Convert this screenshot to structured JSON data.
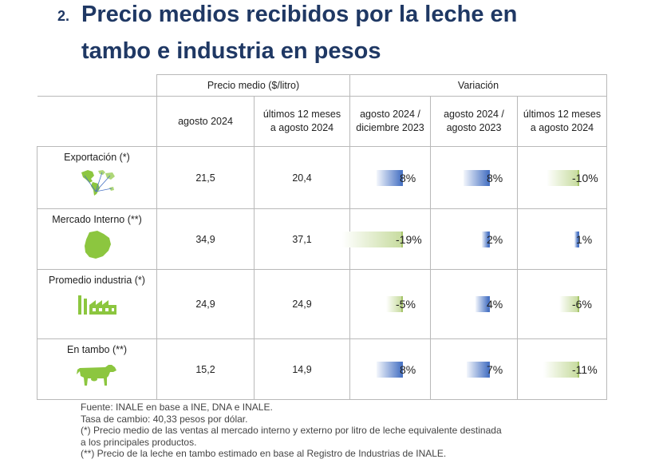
{
  "title": {
    "number": "2.",
    "line1": "Precio medios recibidos por la leche en",
    "line2": "tambo e industria en pesos"
  },
  "header": {
    "group1": "Precio medio ($/litro)",
    "group2": "Variación",
    "col1": "agosto 2024",
    "col2_l1": "últimos 12 meses",
    "col2_l2": "a agosto 2024",
    "col3_l1": "agosto 2024 /",
    "col3_l2": "diciembre 2023",
    "col4_l1": "agosto 2024 /",
    "col4_l2": "agosto 2023",
    "col5_l1": "últimos 12 meses",
    "col5_l2": "a agosto 2024"
  },
  "rows": [
    {
      "label": "Exportación (*)",
      "icon": "world-map-icon",
      "price_aug": "21,5",
      "price_12m": "20,4",
      "var": [
        {
          "text": "8%",
          "value": 8
        },
        {
          "text": "8%",
          "value": 8
        },
        {
          "text": "-10%",
          "value": -10
        }
      ]
    },
    {
      "label": "Mercado Interno (**)",
      "icon": "uruguay-map-icon",
      "price_aug": "34,9",
      "price_12m": "37,1",
      "var": [
        {
          "text": "-19%",
          "value": -19
        },
        {
          "text": "2%",
          "value": 2
        },
        {
          "text": "1%",
          "value": 1
        }
      ]
    },
    {
      "label": "Promedio industria (*)",
      "icon": "factory-icon",
      "price_aug": "24,9",
      "price_12m": "24,9",
      "var": [
        {
          "text": "-5%",
          "value": -5
        },
        {
          "text": "4%",
          "value": 4
        },
        {
          "text": "-6%",
          "value": -6
        }
      ]
    },
    {
      "label": "En tambo (**)",
      "icon": "cow-icon",
      "price_aug": "15,2",
      "price_12m": "14,9",
      "var": [
        {
          "text": "8%",
          "value": 8
        },
        {
          "text": "7%",
          "value": 7
        },
        {
          "text": "-11%",
          "value": -11
        }
      ]
    }
  ],
  "colors": {
    "title": "#1f3864",
    "value": "#1f5fa6",
    "positive_bar": "#4a74c4",
    "negative_bar": "#c8dca0",
    "icon": "#8cc63f"
  },
  "notes": [
    "Fuente: INALE en base a INE, DNA e INALE.",
    "Tasa de cambio: 40,33 pesos por dólar.",
    "(*) Precio medio de las ventas al mercado interno y externo por litro de leche equivalente destinada",
    "a los principales productos.",
    "(**) Precio de la leche en tambo estimado en base al Registro de Industrias de INALE."
  ]
}
